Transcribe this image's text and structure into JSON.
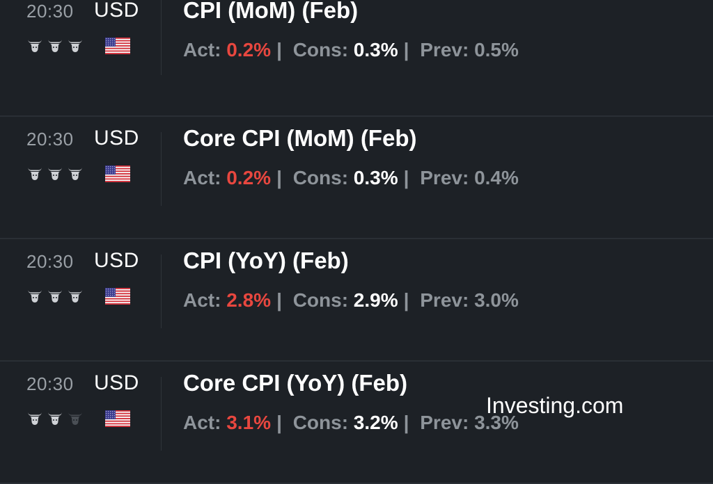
{
  "labels": {
    "act": "Act:",
    "cons": "Cons:",
    "prev": "Prev:",
    "separator": "|"
  },
  "colors": {
    "background": "#1d2126",
    "actual_negative": "#e8473f",
    "bull_active": "#cfd2d6",
    "bull_inactive": "#4a4f55"
  },
  "events": [
    {
      "time": "20:30",
      "currency": "USD",
      "title": "CPI (MoM) (Feb)",
      "importance": 3,
      "flag": "us-flag-icon",
      "actual": "0.2%",
      "consensus": "0.3%",
      "previous": "0.5%"
    },
    {
      "time": "20:30",
      "currency": "USD",
      "title": "Core CPI (MoM) (Feb)",
      "importance": 3,
      "flag": "us-flag-icon",
      "actual": "0.2%",
      "consensus": "0.3%",
      "previous": "0.4%"
    },
    {
      "time": "20:30",
      "currency": "USD",
      "title": "CPI (YoY) (Feb)",
      "importance": 3,
      "flag": "us-flag-icon",
      "actual": "2.8%",
      "consensus": "2.9%",
      "previous": "3.0%"
    },
    {
      "time": "20:30",
      "currency": "USD",
      "title": "Core CPI (YoY) (Feb)",
      "importance": 2,
      "flag": "us-flag-icon",
      "actual": "3.1%",
      "consensus": "3.2%",
      "previous": "3.3%"
    }
  ],
  "watermark": "Investing.com"
}
